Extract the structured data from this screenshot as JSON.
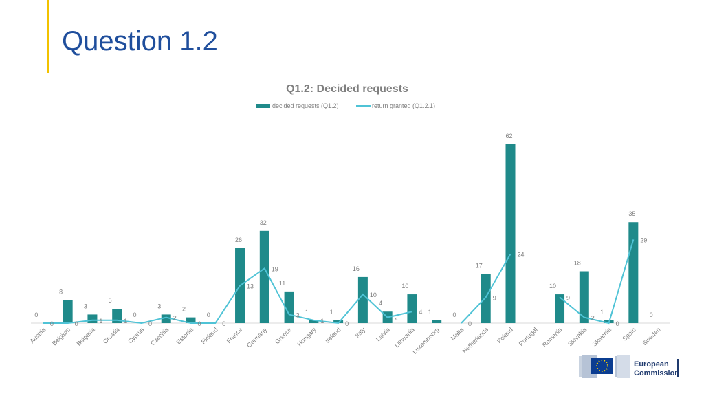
{
  "page": {
    "title": "Question 1.2"
  },
  "logo": {
    "line1": "European",
    "line2": "Commission"
  },
  "colors": {
    "accent": "#f2c200",
    "title": "#1f4e9c",
    "bar": "#1f8a8a",
    "line": "#4fc3d6"
  },
  "chart_data": {
    "type": "bar",
    "title": "Q1.2: Decided requests",
    "legend_position": "top",
    "grid": false,
    "categories": [
      "Austria",
      "Belgium",
      "Bulgaria",
      "Croatia",
      "Cyprus",
      "Czechia",
      "Estonia",
      "Finland",
      "France",
      "Germany",
      "Greece",
      "Hungary",
      "Ireland",
      "Italy",
      "Latvia",
      "Lithuania",
      "Luxembourg",
      "Malta",
      "Netherlands",
      "Poland",
      "Portugal",
      "Romania",
      "Slovakia",
      "Slovenia",
      "Spain",
      "Sweden"
    ],
    "series": [
      {
        "name": "decided requests (Q1.2)",
        "type": "bar",
        "values": [
          0,
          8,
          3,
          5,
          0,
          3,
          2,
          0,
          26,
          32,
          11,
          1,
          1,
          16,
          4,
          10,
          1,
          0,
          17,
          62,
          null,
          10,
          18,
          1,
          35,
          0
        ]
      },
      {
        "name": "return granted (Q1.2.1)",
        "type": "line",
        "values": [
          0,
          0,
          1,
          1,
          0,
          2,
          0,
          0,
          13,
          19,
          3,
          1,
          0,
          10,
          2,
          4,
          null,
          0,
          9,
          24,
          null,
          9,
          2,
          0,
          29,
          null
        ]
      }
    ],
    "ylim": [
      0,
      66
    ]
  }
}
